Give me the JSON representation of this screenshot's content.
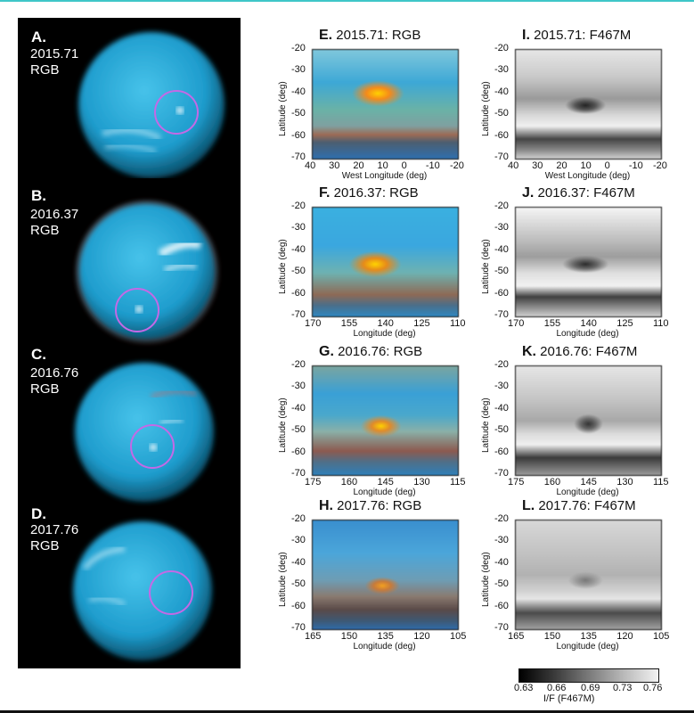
{
  "left_panels": [
    {
      "letter": "A.",
      "date": "2015.71",
      "band": "RGB"
    },
    {
      "letter": "B.",
      "date": "2016.37",
      "band": "RGB"
    },
    {
      "letter": "C.",
      "date": "2016.76",
      "band": "RGB"
    },
    {
      "letter": "D.",
      "date": "2017.76",
      "band": "RGB"
    }
  ],
  "rgb_maps": [
    {
      "letter": "E.",
      "title": "2015.71: RGB",
      "xlabel": "West Longitude (deg)",
      "xticks": [
        "40",
        "30",
        "20",
        "10",
        "0",
        "-10",
        "-20"
      ]
    },
    {
      "letter": "F.",
      "title": "2016.37: RGB",
      "xlabel": "Longitude (deg)",
      "xticks": [
        "170",
        "155",
        "140",
        "125",
        "110"
      ]
    },
    {
      "letter": "G.",
      "title": "2016.76: RGB",
      "xlabel": "Longitude (deg)",
      "xticks": [
        "175",
        "160",
        "145",
        "130",
        "115"
      ]
    },
    {
      "letter": "H.",
      "title": "2017.76: RGB",
      "xlabel": "Longitude (deg)",
      "xticks": [
        "165",
        "150",
        "135",
        "120",
        "105"
      ]
    }
  ],
  "filter_maps": [
    {
      "letter": "I.",
      "title": "2015.71: F467M",
      "xlabel": "West Longitude (deg)",
      "xticks": [
        "40",
        "30",
        "20",
        "10",
        "0",
        "-10",
        "-20"
      ]
    },
    {
      "letter": "J.",
      "title": "2016.37: F467M",
      "xlabel": "Longitude (deg)",
      "xticks": [
        "170",
        "155",
        "140",
        "125",
        "110"
      ]
    },
    {
      "letter": "K.",
      "title": "2016.76: F467M",
      "xlabel": "Longitude (deg)",
      "xticks": [
        "175",
        "160",
        "145",
        "130",
        "115"
      ]
    },
    {
      "letter": "L.",
      "title": "2017.76: F467M",
      "xlabel": "Longitude (deg)",
      "xticks": [
        "165",
        "150",
        "135",
        "120",
        "105"
      ]
    }
  ],
  "ylabel": "Latitude (deg)",
  "yticks": [
    "-20",
    "-30",
    "-40",
    "-50",
    "-60",
    "-70"
  ],
  "colorbar": {
    "ticks": [
      "0.63",
      "0.66",
      "0.69",
      "0.73",
      "0.76"
    ],
    "label": "I/F (F467M)"
  },
  "colors": {
    "planet": "#2aa8d6",
    "limb": "#0c6a8a",
    "marker": "#c469e6",
    "spot": "#f4a400"
  }
}
